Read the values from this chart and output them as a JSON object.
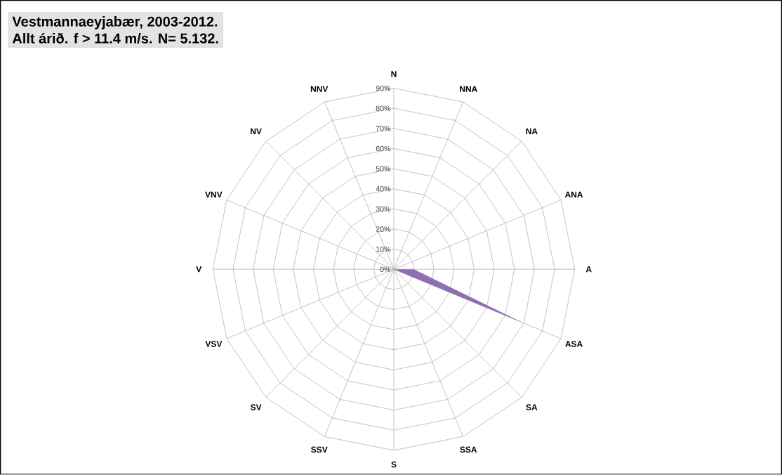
{
  "chart_data": {
    "type": "radar",
    "title": "Vestmannaeyjabær, 2003-2012.",
    "subtitle": "Allt árið. f > 11.4 m/s. N= 5.132.",
    "categories": [
      "N",
      "NNA",
      "NA",
      "ANA",
      "A",
      "ASA",
      "SA",
      "SSA",
      "S",
      "SSV",
      "SV",
      "VSV",
      "V",
      "VNV",
      "NV",
      "NNV"
    ],
    "series": [
      {
        "color": "#8e6fb5",
        "values": [
          0,
          0,
          0,
          0,
          10,
          70,
          0,
          0,
          0,
          0,
          0,
          0,
          0,
          0,
          0,
          0
        ]
      }
    ],
    "ylim": [
      0,
      90
    ],
    "yticks": [
      {
        "value": 0,
        "label": "0%"
      },
      {
        "value": 10,
        "label": "10%"
      },
      {
        "value": 20,
        "label": "20%"
      },
      {
        "value": 30,
        "label": "30%"
      },
      {
        "value": 40,
        "label": "40%"
      },
      {
        "value": 50,
        "label": "50%"
      },
      {
        "value": 60,
        "label": "60%"
      },
      {
        "value": 70,
        "label": "70%"
      },
      {
        "value": 80,
        "label": "80%"
      },
      {
        "value": 90,
        "label": "90%"
      }
    ],
    "grid": true
  }
}
